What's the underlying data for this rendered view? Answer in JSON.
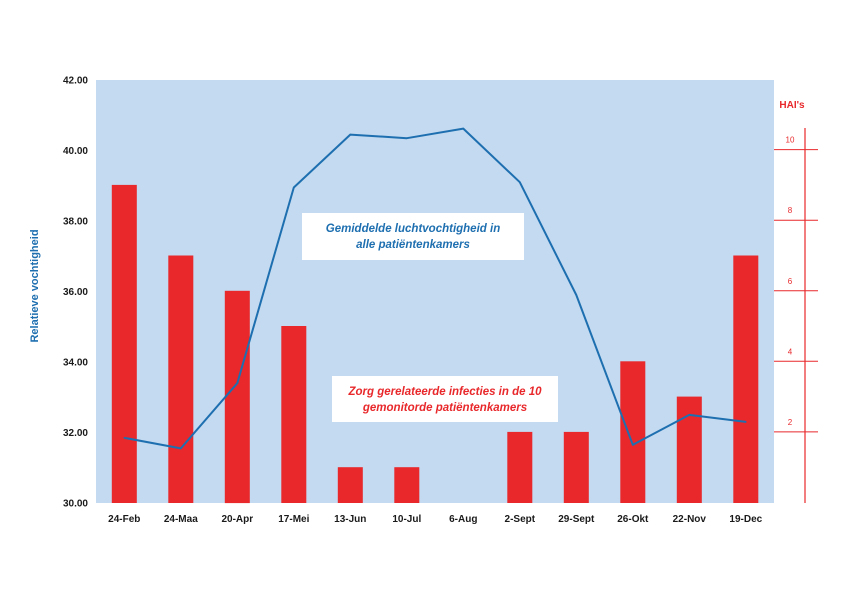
{
  "chart_data": {
    "type": "bar",
    "categories": [
      "24-Feb",
      "24-Maa",
      "20-Apr",
      "17-Mei",
      "13-Jun",
      "10-Jul",
      "6-Aug",
      "2-Sept",
      "29-Sept",
      "26-Okt",
      "22-Nov",
      "19-Dec"
    ],
    "ylabel": "Relatieve vochtigheid",
    "y2label": "HAI's",
    "ylim": [
      30,
      42
    ],
    "y_ticks": [
      "30.00",
      "32.00",
      "34.00",
      "36.00",
      "38.00",
      "40.00",
      "42.00"
    ],
    "y2lim": [
      0,
      12
    ],
    "y2_ticks": [
      "2",
      "4",
      "6",
      "8",
      "10"
    ],
    "grid": false,
    "series": [
      {
        "type": "line",
        "axis": "left",
        "color": "#1e6fb0",
        "values": [
          31.85,
          31.55,
          33.4,
          38.95,
          40.45,
          40.35,
          40.62,
          39.1,
          35.9,
          31.65,
          32.5,
          32.3
        ]
      },
      {
        "type": "bar",
        "axis": "right",
        "color": "#e8282b",
        "values": [
          9,
          7,
          6,
          5,
          1,
          1,
          0,
          2,
          2,
          4,
          3,
          7
        ]
      }
    ],
    "annotations": [
      {
        "lines": [
          "Gemiddelde luchtvochtigheid in",
          "alle patiëntenkamers"
        ],
        "color": "#1e6fb0"
      },
      {
        "lines": [
          "Zorg gerelateerde infecties in de 10",
          "gemonitorde patiëntenkamers"
        ],
        "color": "#e8282b"
      }
    ]
  },
  "colors": {
    "plot_background": "#c3daf0",
    "humidity_line": "#1e6fb0",
    "hai_bars": "#e8282b"
  }
}
